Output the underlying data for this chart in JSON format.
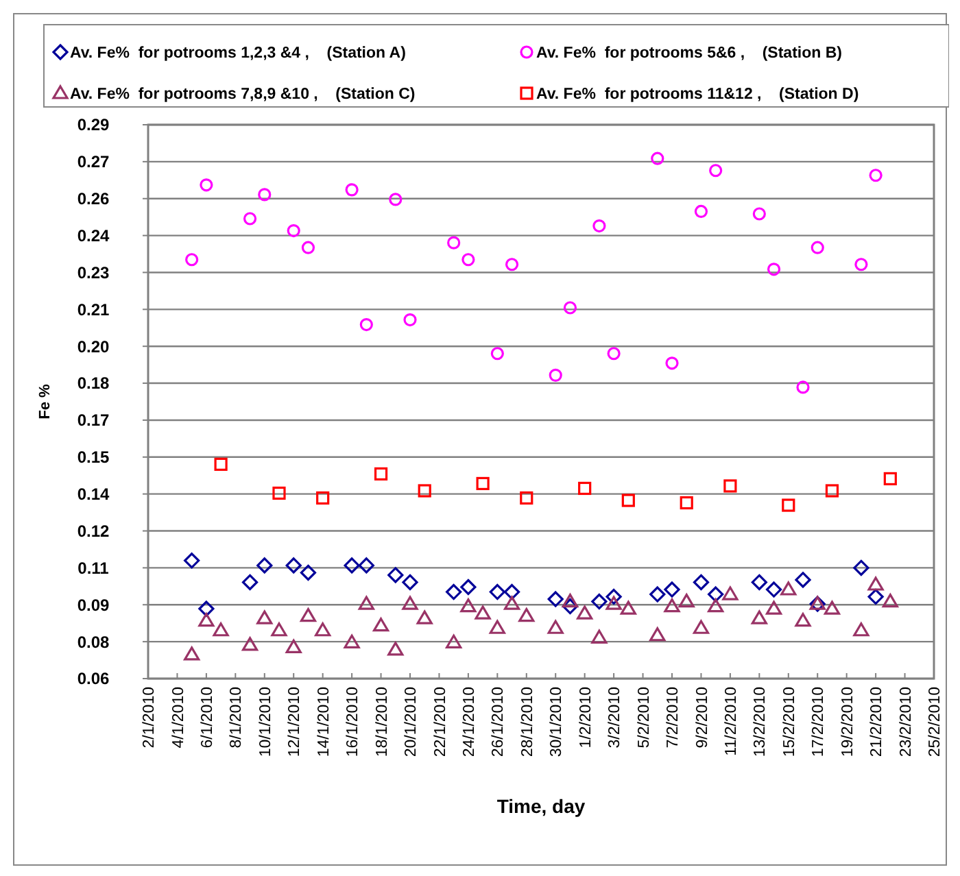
{
  "chart_data": {
    "type": "scatter",
    "xlabel": "Time, day",
    "ylabel": "Fe %",
    "xlim": [
      "2010-01-02",
      "2010-02-25"
    ],
    "xticks": [
      {
        "value": "2010-01-02",
        "label": "2/1/2010"
      },
      {
        "value": "2010-01-04",
        "label": "4/1/2010"
      },
      {
        "value": "2010-01-06",
        "label": "6/1/2010"
      },
      {
        "value": "2010-01-08",
        "label": "8/1/2010"
      },
      {
        "value": "2010-01-10",
        "label": "10/1/2010"
      },
      {
        "value": "2010-01-12",
        "label": "12/1/2010"
      },
      {
        "value": "2010-01-14",
        "label": "14/1/2010"
      },
      {
        "value": "2010-01-16",
        "label": "16/1/2010"
      },
      {
        "value": "2010-01-18",
        "label": "18/1/2010"
      },
      {
        "value": "2010-01-20",
        "label": "20/1/2010"
      },
      {
        "value": "2010-01-22",
        "label": "22/1/2010"
      },
      {
        "value": "2010-01-24",
        "label": "24/1/2010"
      },
      {
        "value": "2010-01-26",
        "label": "26/1/2010"
      },
      {
        "value": "2010-01-28",
        "label": "28/1/2010"
      },
      {
        "value": "2010-01-30",
        "label": "30/1/2010"
      },
      {
        "value": "2010-02-01",
        "label": "1/2/2010"
      },
      {
        "value": "2010-02-03",
        "label": "3/2/2010"
      },
      {
        "value": "2010-02-05",
        "label": "5/2/2010"
      },
      {
        "value": "2010-02-07",
        "label": "7/2/2010"
      },
      {
        "value": "2010-02-09",
        "label": "9/2/2010"
      },
      {
        "value": "2010-02-11",
        "label": "11/2/2010"
      },
      {
        "value": "2010-02-13",
        "label": "13/2/2010"
      },
      {
        "value": "2010-02-15",
        "label": "15/2/2010"
      },
      {
        "value": "2010-02-17",
        "label": "17/2/2010"
      },
      {
        "value": "2010-02-19",
        "label": "19/2/2010"
      },
      {
        "value": "2010-02-21",
        "label": "21/2/2010"
      },
      {
        "value": "2010-02-23",
        "label": "23/2/2010"
      },
      {
        "value": "2010-02-25",
        "label": "25/2/2010"
      }
    ],
    "ylim": [
      0.06,
      0.29
    ],
    "yticks": [
      {
        "value": 0.06,
        "label": "0.06"
      },
      {
        "value": 0.07533,
        "label": "0.08"
      },
      {
        "value": 0.09067,
        "label": "0.09"
      },
      {
        "value": 0.106,
        "label": "0.11"
      },
      {
        "value": 0.12133,
        "label": "0.12"
      },
      {
        "value": 0.13667,
        "label": "0.14"
      },
      {
        "value": 0.152,
        "label": "0.15"
      },
      {
        "value": 0.16733,
        "label": "0.17"
      },
      {
        "value": 0.18267,
        "label": "0.18"
      },
      {
        "value": 0.198,
        "label": "0.20"
      },
      {
        "value": 0.21333,
        "label": "0.21"
      },
      {
        "value": 0.22867,
        "label": "0.23"
      },
      {
        "value": 0.244,
        "label": "0.24"
      },
      {
        "value": 0.25933,
        "label": "0.26"
      },
      {
        "value": 0.27467,
        "label": "0.27"
      },
      {
        "value": 0.29,
        "label": "0.29"
      }
    ],
    "grid": "y",
    "legend": "top",
    "series": [
      {
        "name": "Av. Fe%  for potrooms 1,2,3 &4 ,    (Station A)",
        "color": "#000099",
        "marker": "diamond",
        "x": [
          "2010-01-05",
          "2010-01-06",
          "2010-01-09",
          "2010-01-10",
          "2010-01-12",
          "2010-01-13",
          "2010-01-16",
          "2010-01-17",
          "2010-01-19",
          "2010-01-20",
          "2010-01-23",
          "2010-01-24",
          "2010-01-26",
          "2010-01-27",
          "2010-01-30",
          "2010-01-31",
          "2010-02-02",
          "2010-02-03",
          "2010-02-06",
          "2010-02-07",
          "2010-02-09",
          "2010-02-10",
          "2010-02-13",
          "2010-02-14",
          "2010-02-16",
          "2010-02-17",
          "2010-02-20",
          "2010-02-21"
        ],
        "values": [
          0.109,
          0.089,
          0.1,
          0.107,
          0.107,
          0.104,
          0.107,
          0.107,
          0.103,
          0.1,
          0.096,
          0.098,
          0.096,
          0.096,
          0.093,
          0.09,
          0.092,
          0.094,
          0.095,
          0.097,
          0.1,
          0.095,
          0.1,
          0.097,
          0.101,
          0.091,
          0.106,
          0.094
        ]
      },
      {
        "name": "Av. Fe%  for potrooms 5&6 ,    (Station B)",
        "color": "#ff00ff",
        "marker": "circle",
        "x": [
          "2010-01-05",
          "2010-01-06",
          "2010-01-09",
          "2010-01-10",
          "2010-01-12",
          "2010-01-13",
          "2010-01-16",
          "2010-01-17",
          "2010-01-19",
          "2010-01-20",
          "2010-01-23",
          "2010-01-24",
          "2010-01-26",
          "2010-01-27",
          "2010-01-30",
          "2010-01-31",
          "2010-02-02",
          "2010-02-03",
          "2010-02-06",
          "2010-02-07",
          "2010-02-09",
          "2010-02-10",
          "2010-02-13",
          "2010-02-14",
          "2010-02-16",
          "2010-02-17",
          "2010-02-20",
          "2010-02-21"
        ],
        "values": [
          0.234,
          0.265,
          0.251,
          0.261,
          0.246,
          0.239,
          0.263,
          0.207,
          0.259,
          0.209,
          0.241,
          0.234,
          0.195,
          0.232,
          0.186,
          0.214,
          0.248,
          0.195,
          0.276,
          0.191,
          0.254,
          0.271,
          0.253,
          0.23,
          0.181,
          0.239,
          0.232,
          0.269
        ]
      },
      {
        "name": "Av. Fe%  for potrooms 7,8,9 &10 ,    (Station C)",
        "color": "#993366",
        "marker": "triangle",
        "x": [
          "2010-01-05",
          "2010-01-06",
          "2010-01-07",
          "2010-01-09",
          "2010-01-10",
          "2010-01-11",
          "2010-01-12",
          "2010-01-13",
          "2010-01-14",
          "2010-01-16",
          "2010-01-17",
          "2010-01-18",
          "2010-01-19",
          "2010-01-20",
          "2010-01-21",
          "2010-01-23",
          "2010-01-24",
          "2010-01-25",
          "2010-01-26",
          "2010-01-27",
          "2010-01-28",
          "2010-01-30",
          "2010-01-31",
          "2010-02-01",
          "2010-02-02",
          "2010-02-03",
          "2010-02-04",
          "2010-02-06",
          "2010-02-07",
          "2010-02-08",
          "2010-02-09",
          "2010-02-10",
          "2010-02-11",
          "2010-02-13",
          "2010-02-14",
          "2010-02-15",
          "2010-02-16",
          "2010-02-17",
          "2010-02-18",
          "2010-02-20",
          "2010-02-21",
          "2010-02-22"
        ],
        "values": [
          0.07,
          0.084,
          0.08,
          0.074,
          0.085,
          0.08,
          0.073,
          0.086,
          0.08,
          0.075,
          0.091,
          0.082,
          0.072,
          0.091,
          0.085,
          0.075,
          0.09,
          0.087,
          0.081,
          0.091,
          0.086,
          0.081,
          0.092,
          0.087,
          0.077,
          0.091,
          0.089,
          0.078,
          0.09,
          0.092,
          0.081,
          0.09,
          0.095,
          0.085,
          0.089,
          0.097,
          0.084,
          0.091,
          0.089,
          0.08,
          0.099,
          0.092
        ]
      },
      {
        "name": "Av. Fe%  for potrooms 11&12 ,    (Station D)",
        "color": "#ff0000",
        "marker": "square",
        "x": [
          "2010-01-07",
          "2010-01-11",
          "2010-01-14",
          "2010-01-18",
          "2010-01-21",
          "2010-01-25",
          "2010-01-28",
          "2010-02-01",
          "2010-02-04",
          "2010-02-08",
          "2010-02-11",
          "2010-02-15",
          "2010-02-18",
          "2010-02-22"
        ],
        "values": [
          0.149,
          0.137,
          0.135,
          0.145,
          0.138,
          0.141,
          0.135,
          0.139,
          0.134,
          0.133,
          0.14,
          0.132,
          0.138,
          0.143
        ]
      }
    ]
  }
}
